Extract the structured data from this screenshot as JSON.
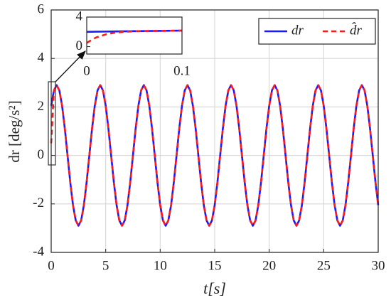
{
  "chart_data": [
    {
      "type": "line",
      "x_label": "t[s]",
      "y_label": "dr [deg/s²]",
      "xlim": [
        0,
        30
      ],
      "xticks": [
        0,
        5,
        10,
        15,
        20,
        25,
        30
      ],
      "ylim": [
        -4,
        6
      ],
      "yticks": [
        -4,
        -2,
        0,
        2,
        4,
        6
      ],
      "grid": true,
      "legend": "upper right",
      "x": [
        0,
        0.25,
        0.5,
        0.75,
        1,
        1.25,
        1.5,
        1.75,
        2,
        2.25,
        2.5,
        2.75,
        3,
        3.25,
        3.5,
        3.75,
        4,
        4.25,
        4.5,
        4.75,
        5,
        5.25,
        5.5,
        5.75,
        6,
        6.25,
        6.5,
        6.75,
        7,
        7.25,
        7.5,
        7.75,
        8,
        8.25,
        8.5,
        8.75,
        9,
        9.25,
        9.5,
        9.75,
        10,
        10.25,
        10.5,
        10.75,
        11,
        11.25,
        11.5,
        11.75,
        12,
        12.25,
        12.5,
        12.75,
        13,
        13.25,
        13.5,
        13.75,
        14,
        14.25,
        14.5,
        14.75,
        15,
        15.25,
        15.5,
        15.75,
        16,
        16.25,
        16.5,
        16.75,
        17,
        17.25,
        17.5,
        17.75,
        18,
        18.25,
        18.5,
        18.75,
        19,
        19.25,
        19.5,
        19.75,
        20,
        20.25,
        20.5,
        20.75,
        21,
        21.25,
        21.5,
        21.75,
        22,
        22.25,
        22.5,
        22.75,
        23,
        23.25,
        23.5,
        23.75,
        24,
        24.25,
        24.5,
        24.75,
        25,
        25.25,
        25.5,
        25.75,
        26,
        26.25,
        26.5,
        26.75,
        27,
        27.25,
        27.5,
        27.75,
        28,
        28.25,
        28.5,
        28.75,
        29,
        29.25,
        29.5,
        29.75,
        30
      ],
      "series": [
        {
          "name": "dr",
          "color": "#1a1aff",
          "dash": false,
          "values": [
            2.05,
            2.68,
            2.9,
            2.68,
            2.05,
            1.11,
            0,
            -1.11,
            -2.05,
            -2.68,
            -2.9,
            -2.68,
            -2.05,
            -1.11,
            0,
            1.11,
            2.05,
            2.68,
            2.9,
            2.68,
            2.05,
            1.11,
            0,
            -1.11,
            -2.05,
            -2.68,
            -2.9,
            -2.68,
            -2.05,
            -1.11,
            0,
            1.11,
            2.05,
            2.68,
            2.9,
            2.68,
            2.05,
            1.11,
            0,
            -1.11,
            -2.05,
            -2.68,
            -2.9,
            -2.68,
            -2.05,
            -1.11,
            0,
            1.11,
            2.05,
            2.68,
            2.9,
            2.68,
            2.05,
            1.11,
            0,
            -1.11,
            -2.05,
            -2.68,
            -2.9,
            -2.68,
            -2.05,
            -1.11,
            0,
            1.11,
            2.05,
            2.68,
            2.9,
            2.68,
            2.05,
            1.11,
            0,
            -1.11,
            -2.05,
            -2.68,
            -2.9,
            -2.68,
            -2.05,
            -1.11,
            0,
            1.11,
            2.05,
            2.68,
            2.9,
            2.68,
            2.05,
            1.11,
            0,
            -1.11,
            -2.05,
            -2.68,
            -2.9,
            -2.68,
            -2.05,
            -1.11,
            0,
            1.11,
            2.05,
            2.68,
            2.9,
            2.68,
            2.05,
            1.11,
            0,
            -1.11,
            -2.05,
            -2.68,
            -2.9,
            -2.68,
            -2.05,
            -1.11,
            0,
            1.11,
            2.05,
            2.68,
            2.9,
            2.68,
            2.05,
            1.11,
            0,
            -1.11,
            -2.05
          ]
        },
        {
          "name": "d̂r",
          "color": "#ff1a1a",
          "dash": true,
          "values": [
            0.5,
            2.68,
            2.9,
            2.68,
            2.05,
            1.11,
            0,
            -1.11,
            -2.05,
            -2.68,
            -2.9,
            -2.68,
            -2.05,
            -1.11,
            0,
            1.11,
            2.05,
            2.68,
            2.9,
            2.68,
            2.05,
            1.11,
            0,
            -1.11,
            -2.05,
            -2.68,
            -2.9,
            -2.68,
            -2.05,
            -1.11,
            0,
            1.11,
            2.05,
            2.68,
            2.9,
            2.68,
            2.05,
            1.11,
            0,
            -1.11,
            -2.05,
            -2.68,
            -2.9,
            -2.68,
            -2.05,
            -1.11,
            0,
            1.11,
            2.05,
            2.68,
            2.9,
            2.68,
            2.05,
            1.11,
            0,
            -1.11,
            -2.05,
            -2.68,
            -2.9,
            -2.68,
            -2.05,
            -1.11,
            0,
            1.11,
            2.05,
            2.68,
            2.9,
            2.68,
            2.05,
            1.11,
            0,
            -1.11,
            -2.05,
            -2.68,
            -2.9,
            -2.68,
            -2.05,
            -1.11,
            0,
            1.11,
            2.05,
            2.68,
            2.9,
            2.68,
            2.05,
            1.11,
            0,
            -1.11,
            -2.05,
            -2.68,
            -2.9,
            -2.68,
            -2.05,
            -1.11,
            0,
            1.11,
            2.05,
            2.68,
            2.9,
            2.68,
            2.05,
            1.11,
            0,
            -1.11,
            -2.05,
            -2.68,
            -2.9,
            -2.68,
            -2.05,
            -1.11,
            0,
            1.11,
            2.05,
            2.68,
            2.9,
            2.68,
            2.05,
            1.11,
            0,
            -1.11,
            -2.05
          ]
        }
      ]
    },
    {
      "type": "line",
      "xlim": [
        0,
        0.1
      ],
      "xticks": [
        0,
        0.1
      ],
      "ylim": [
        -1,
        4
      ],
      "yticks": [
        0,
        4
      ],
      "grid": false,
      "x": [
        0,
        0.005,
        0.01,
        0.02,
        0.03,
        0.05,
        0.1
      ],
      "series": [
        {
          "name": "dr",
          "color": "#1a1aff",
          "dash": false,
          "values": [
            2,
            2.01,
            2.02,
            2.04,
            2.06,
            2.09,
            2.17
          ]
        },
        {
          "name": "d̂r",
          "color": "#ff1a1a",
          "dash": true,
          "values": [
            0.5,
            0.9,
            1.25,
            1.65,
            1.9,
            2.09,
            2.17
          ]
        }
      ]
    }
  ]
}
